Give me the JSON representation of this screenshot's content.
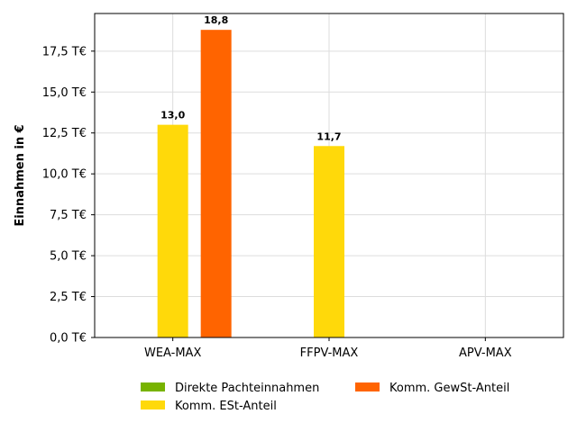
{
  "chart_data": {
    "type": "bar",
    "title": "",
    "xlabel": "",
    "ylabel": "Einnahmen in €",
    "categories": [
      "WEA-MAX",
      "FFPV-MAX",
      "APV-MAX"
    ],
    "series": [
      {
        "name": "Direkte Pachteinnahmen",
        "color": "#77b300",
        "values": [
          0,
          0,
          0
        ]
      },
      {
        "name": "Komm. ESt-Anteil",
        "color": "#ffd90a",
        "values": [
          13.0,
          11.7,
          0
        ]
      },
      {
        "name": "Komm. GewSt-Anteil",
        "color": "#ff6400",
        "values": [
          18.8,
          0,
          0
        ]
      }
    ],
    "data_labels": [
      {
        "category": "WEA-MAX",
        "series": "Komm. ESt-Anteil",
        "text": "13,0"
      },
      {
        "category": "WEA-MAX",
        "series": "Komm. GewSt-Anteil",
        "text": "18,8"
      },
      {
        "category": "FFPV-MAX",
        "series": "Komm. ESt-Anteil",
        "text": "11,7"
      }
    ],
    "ylim": [
      0,
      19.8
    ],
    "yticks": [
      0,
      2.5,
      5.0,
      7.5,
      10.0,
      12.5,
      15.0,
      17.5
    ],
    "ytick_labels": [
      "0,0 T€",
      "2,5 T€",
      "5,0 T€",
      "7,5 T€",
      "10,0 T€",
      "12,5 T€",
      "15,0 T€",
      "17,5 T€"
    ],
    "grid": true,
    "legend_position": "bottom-center"
  }
}
